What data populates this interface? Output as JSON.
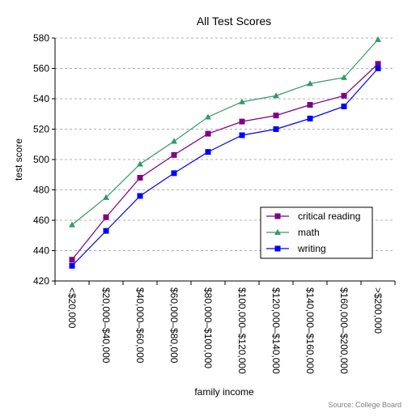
{
  "chart_data": {
    "type": "line",
    "title": "All Test Scores",
    "xlabel": "family income",
    "ylabel": "test score",
    "ylim": [
      420,
      580
    ],
    "yticks": [
      420,
      440,
      460,
      480,
      500,
      520,
      540,
      560,
      580
    ],
    "grid": true,
    "legend_position": "lower-right",
    "categories": [
      "<$20,000",
      "$20,000–$40,000",
      "$40,000–$60,000",
      "$60,000–$80,000",
      "$80,000–$100,000",
      "$100,000–$120,000",
      "$120,000–$140,000",
      "$140,000–$160,000",
      "$160,000–$200,000",
      ">$200,000"
    ],
    "series": [
      {
        "name": "critical reading",
        "color": "#800080",
        "marker": "square",
        "values": [
          434,
          462,
          488,
          503,
          517,
          525,
          529,
          536,
          542,
          563
        ]
      },
      {
        "name": "math",
        "color": "#339966",
        "marker": "triangle",
        "values": [
          457,
          475,
          497,
          512,
          528,
          538,
          542,
          550,
          554,
          579
        ]
      },
      {
        "name": "writing",
        "color": "#0000ff",
        "marker": "square",
        "values": [
          430,
          453,
          476,
          491,
          505,
          516,
          520,
          527,
          535,
          560
        ]
      }
    ],
    "source": "Source: College Board"
  }
}
